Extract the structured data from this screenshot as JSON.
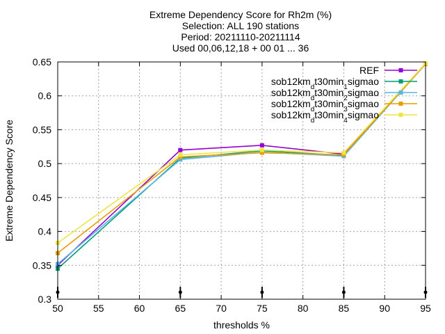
{
  "chart_data": {
    "type": "line",
    "title_lines": [
      "Extreme Dependency Score  for Rh2m (%)",
      "Selection: ALL     190 stations",
      "Period: 20211110-20211114",
      "Used 00,06,12,18 + 00 01 ... 36"
    ],
    "xlabel": "thresholds %",
    "ylabel": "Extreme Dependency Score",
    "xlim": [
      50,
      95
    ],
    "ylim": [
      0.3,
      0.65
    ],
    "xticks": [
      "50",
      "55",
      "60",
      "65",
      "70",
      "75",
      "80",
      "85",
      "90",
      "95"
    ],
    "yticks": [
      "0.3",
      "0.35",
      "0.4",
      "0.45",
      "0.5",
      "0.55",
      "0.6",
      "0.65"
    ],
    "grid": true,
    "legend_position": "top-right",
    "x": [
      50,
      65,
      75,
      85,
      95
    ],
    "series": [
      {
        "name": "REF",
        "legend": {
          "base": "REF",
          "sub": "",
          "rest": ""
        },
        "color": "#9400d3",
        "values": [
          0.35,
          0.52,
          0.527,
          0.514,
          0.647
        ]
      },
      {
        "name": "sob12km_dt30min_1sigmao",
        "legend": {
          "base": "sob12km",
          "sub": "d",
          "rest": "t30min",
          "sub2": "1",
          "tail": "sigmao"
        },
        "color": "#009e73",
        "values": [
          0.345,
          0.508,
          0.519,
          0.512,
          0.647
        ]
      },
      {
        "name": "sob12km_dt30min_2sigmao",
        "legend": {
          "base": "sob12km",
          "sub": "d",
          "rest": "t30min",
          "sub2": "2",
          "tail": "sigmao"
        },
        "color": "#56b4e9",
        "values": [
          0.352,
          0.506,
          0.517,
          0.511,
          0.647
        ]
      },
      {
        "name": "sob12km_dt30min_3sigmao",
        "legend": {
          "base": "sob12km",
          "sub": "d",
          "rest": "t30min",
          "sub2": "3",
          "tail": "sigmao"
        },
        "color": "#e69f00",
        "values": [
          0.368,
          0.51,
          0.516,
          0.513,
          0.647
        ]
      },
      {
        "name": "sob12km_dt30min_4sigmao",
        "legend": {
          "base": "sob12km",
          "sub": "d",
          "rest": "t30min",
          "sub2": "4",
          "tail": "sigmao"
        },
        "color": "#f0e442",
        "values": [
          0.383,
          0.513,
          0.52,
          0.516,
          0.648
        ]
      }
    ]
  }
}
